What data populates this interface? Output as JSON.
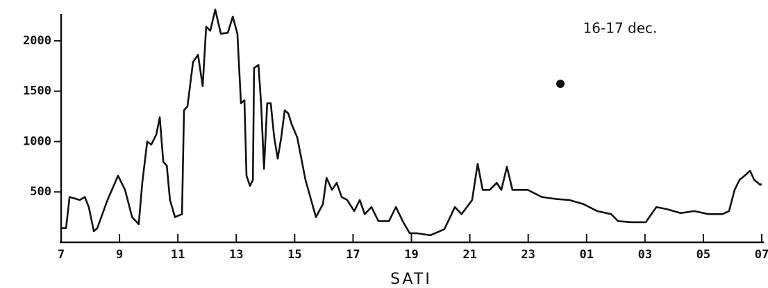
{
  "chart_data": {
    "type": "line",
    "annotation": "16-17 dec.",
    "x_label": "SATI",
    "x": [
      7.0,
      7.17,
      7.29,
      7.64,
      7.81,
      7.95,
      8.12,
      8.24,
      8.59,
      8.95,
      9.19,
      9.43,
      9.66,
      9.78,
      9.95,
      10.09,
      10.26,
      10.38,
      10.5,
      10.62,
      10.73,
      10.9,
      11.14,
      11.21,
      11.33,
      11.52,
      11.69,
      11.85,
      11.97,
      12.11,
      12.28,
      12.47,
      12.71,
      12.88,
      13.04,
      13.16,
      13.28,
      13.35,
      13.47,
      13.57,
      13.61,
      13.76,
      13.85,
      13.95,
      14.06,
      14.18,
      14.3,
      14.42,
      14.54,
      14.66,
      14.78,
      14.9,
      15.09,
      15.37,
      15.73,
      15.97,
      16.09,
      16.28,
      16.44,
      16.61,
      16.8,
      17.04,
      17.23,
      17.4,
      17.63,
      17.87,
      18.23,
      18.47,
      18.7,
      18.94,
      19.18,
      19.65,
      20.13,
      20.49,
      20.72,
      21.08,
      21.27,
      21.44,
      21.68,
      21.92,
      22.08,
      22.27,
      22.46,
      22.99,
      23.46,
      23.94,
      24.41,
      24.89,
      25.36,
      25.84,
      26.08,
      26.55,
      27.03,
      27.39,
      27.74,
      28.22,
      28.69,
      29.17,
      29.65,
      29.88,
      30.07,
      30.24,
      30.41,
      30.6,
      30.74,
      30.95,
      31.0
    ],
    "series": [
      {
        "color": "#111111",
        "values": [
          140,
          140,
          450,
          420,
          450,
          350,
          110,
          140,
          420,
          660,
          520,
          250,
          180,
          590,
          1000,
          970,
          1070,
          1240,
          800,
          760,
          420,
          250,
          280,
          1310,
          1350,
          1790,
          1860,
          1550,
          2140,
          2100,
          2310,
          2070,
          2080,
          2240,
          2070,
          1380,
          1410,
          660,
          560,
          620,
          1730,
          1760,
          1380,
          730,
          1380,
          1380,
          1040,
          830,
          1040,
          1310,
          1280,
          1170,
          1040,
          620,
          250,
          380,
          640,
          520,
          590,
          450,
          420,
          310,
          420,
          280,
          350,
          210,
          210,
          350,
          210,
          90,
          90,
          70,
          130,
          350,
          280,
          420,
          780,
          520,
          520,
          590,
          520,
          750,
          520,
          520,
          450,
          430,
          420,
          380,
          310,
          280,
          210,
          200,
          200,
          350,
          330,
          290,
          310,
          280,
          280,
          310,
          520,
          620,
          660,
          710,
          620,
          570,
          580
        ]
      }
    ],
    "xlim": [
      7,
      31
    ],
    "ylim": [
      0,
      2350
    ],
    "xticks": [
      7,
      9,
      11,
      13,
      15,
      17,
      19,
      21,
      23,
      {
        "value": 25,
        "label": "01"
      },
      {
        "value": 27,
        "label": "03"
      },
      {
        "value": 29,
        "label": "05"
      },
      {
        "value": 31,
        "label": "07"
      }
    ],
    "yticks": [
      500,
      1000,
      1500,
      2000
    ]
  }
}
